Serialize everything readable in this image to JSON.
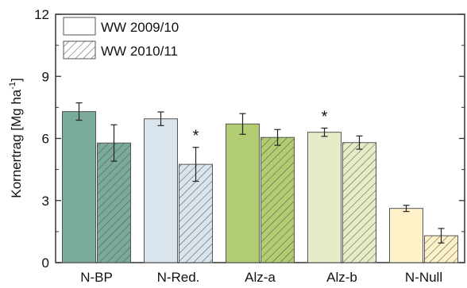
{
  "chart_data": {
    "type": "bar",
    "ylabel_main": "Kornertrag [Mg ha",
    "ylabel_sup": "-1",
    "ylabel_close": "]",
    "ylim": [
      0,
      12
    ],
    "yticks": [
      "0",
      "3",
      "6",
      "9",
      "12"
    ],
    "categories": [
      "N-BP",
      "N-Red.",
      "Alz-a",
      "Alz-b",
      "N-Null"
    ],
    "series": [
      {
        "name": "WW 2009/10",
        "pattern": "solid",
        "values": [
          7.3,
          6.95,
          6.7,
          6.3,
          2.62
        ],
        "errors": [
          0.42,
          0.33,
          0.5,
          0.2,
          0.15
        ]
      },
      {
        "name": "WW 2010/11",
        "pattern": "hatched",
        "values": [
          5.78,
          4.75,
          6.05,
          5.8,
          1.3
        ],
        "errors": [
          0.88,
          0.82,
          0.38,
          0.32,
          0.35
        ]
      }
    ],
    "annotations": [
      {
        "text": "*",
        "category": "N-Red.",
        "series": 1
      },
      {
        "text": "*",
        "category": "Alz-b",
        "series": 0
      }
    ],
    "colors": {
      "solid": [
        "#7aaa9c",
        "#d9e4ec",
        "#b2cc72",
        "#e5ecc8",
        "#fdf2c7"
      ],
      "hatched": [
        "#7aaa9c",
        "#d9e4ec",
        "#b2cc72",
        "#e5ecc8",
        "#fdf2c7"
      ]
    },
    "legend_position": "top-left",
    "grid": false
  }
}
